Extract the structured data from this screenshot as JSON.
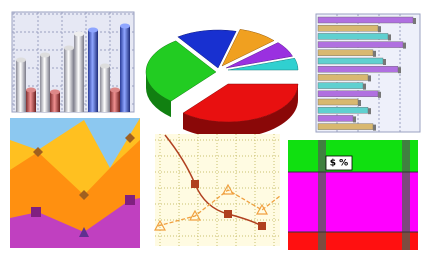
{
  "label": "$ %"
}
